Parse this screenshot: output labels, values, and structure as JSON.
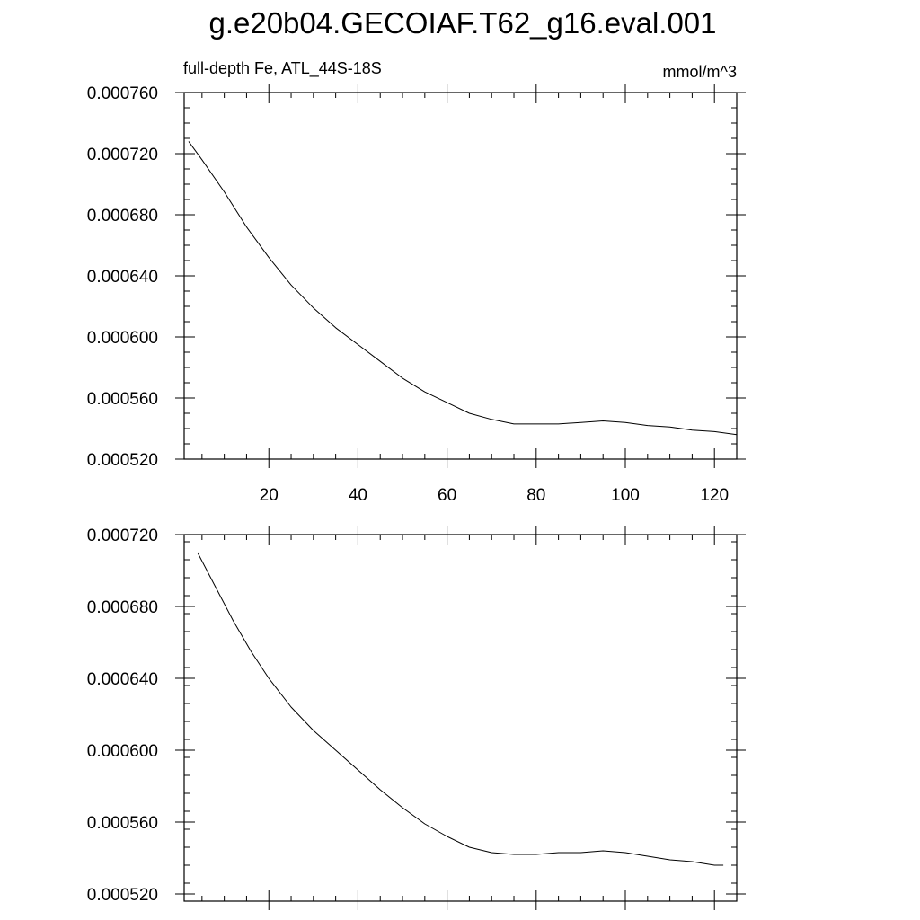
{
  "title": "g.e20b04.GECOIAF.T62_g16.eval.001",
  "subtitle_left": "full-depth Fe, ATL_44S-18S",
  "subtitle_right": "mmol/m^3",
  "chart_data": [
    {
      "type": "line",
      "xlim": [
        1,
        125
      ],
      "ylim": [
        0.00052,
        0.00076
      ],
      "x_ticks": [
        20,
        40,
        60,
        80,
        100,
        120
      ],
      "x_tick_labels": [
        "20",
        "40",
        "60",
        "80",
        "100",
        "120"
      ],
      "y_ticks": [
        0.00052,
        0.00056,
        0.0006,
        0.00064,
        0.00068,
        0.00072,
        0.00076
      ],
      "y_tick_labels": [
        "0.000520",
        "0.000560",
        "0.000600",
        "0.000640",
        "0.000680",
        "0.000720",
        "0.000760"
      ],
      "grid": false,
      "series": [
        {
          "x": [
            2,
            5,
            10,
            15,
            20,
            25,
            30,
            35,
            40,
            45,
            50,
            55,
            60,
            65,
            70,
            75,
            80,
            85,
            90,
            95,
            100,
            105,
            110,
            115,
            120,
            125
          ],
          "y": [
            0.000728,
            0.000716,
            0.000695,
            0.000672,
            0.000652,
            0.000634,
            0.000619,
            0.000606,
            0.000595,
            0.000584,
            0.000573,
            0.000564,
            0.000557,
            0.00055,
            0.000546,
            0.000543,
            0.000543,
            0.000543,
            0.000544,
            0.000545,
            0.000544,
            0.000542,
            0.000541,
            0.000539,
            0.000538,
            0.000536
          ]
        }
      ]
    },
    {
      "type": "line",
      "xlim": [
        1,
        125
      ],
      "ylim": [
        0.000516,
        0.00072
      ],
      "x_ticks": [
        20,
        40,
        60,
        80,
        100,
        120
      ],
      "y_ticks": [
        0.00052,
        0.00056,
        0.0006,
        0.00064,
        0.00068,
        0.00072
      ],
      "y_tick_labels": [
        "0.000520",
        "0.000560",
        "0.000600",
        "0.000640",
        "0.000680",
        "0.000720"
      ],
      "grid": false,
      "series": [
        {
          "x": [
            4,
            8,
            12,
            16,
            20,
            25,
            30,
            35,
            40,
            45,
            50,
            55,
            60,
            65,
            70,
            75,
            80,
            85,
            90,
            95,
            100,
            105,
            110,
            115,
            120,
            122
          ],
          "y": [
            0.00071,
            0.000691,
            0.000672,
            0.000655,
            0.00064,
            0.000624,
            0.000611,
            0.0006,
            0.000589,
            0.000578,
            0.000568,
            0.000559,
            0.000552,
            0.000546,
            0.000543,
            0.000542,
            0.000542,
            0.000543,
            0.000543,
            0.000544,
            0.000543,
            0.000541,
            0.000539,
            0.000538,
            0.000536,
            0.000536
          ]
        }
      ]
    }
  ]
}
